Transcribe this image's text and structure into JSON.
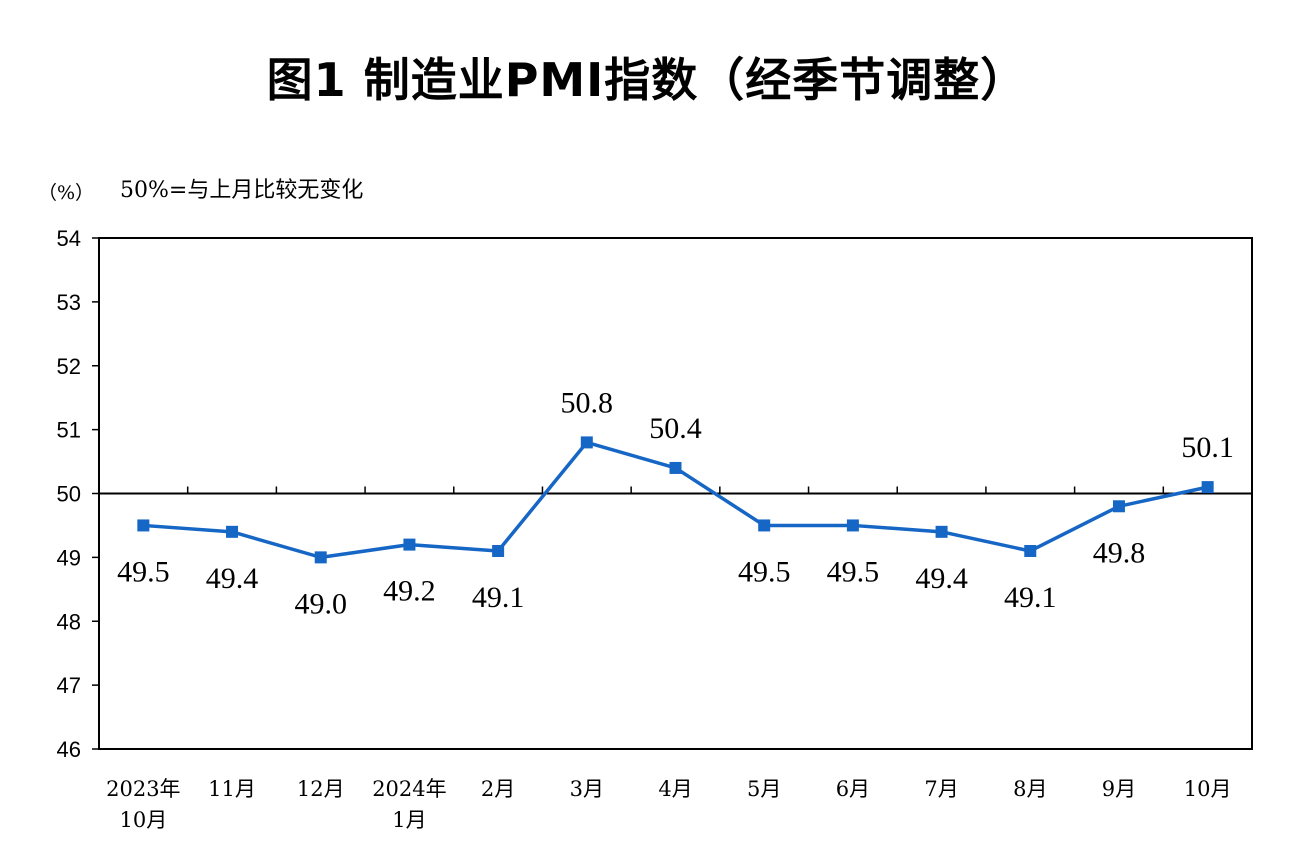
{
  "title": "图1  制造业PMI指数（经季节调整）",
  "unit_label": "（%）",
  "note": "50%=与上月比较无变化",
  "chart_data": {
    "type": "line",
    "title": "图1  制造业PMI指数（经季节调整）",
    "ylabel": "（%）",
    "annotation": "50%=与上月比较无变化",
    "ylim": [
      46,
      54
    ],
    "yticks": [
      46,
      47,
      48,
      49,
      50,
      51,
      52,
      53,
      54
    ],
    "reference_line": 50,
    "grid": false,
    "categories": [
      [
        "2023年",
        "10月"
      ],
      [
        "11月"
      ],
      [
        "12月"
      ],
      [
        "2024年",
        "1月"
      ],
      [
        "2月"
      ],
      [
        "3月"
      ],
      [
        "4月"
      ],
      [
        "5月"
      ],
      [
        "6月"
      ],
      [
        "7月"
      ],
      [
        "8月"
      ],
      [
        "9月"
      ],
      [
        "10月"
      ]
    ],
    "series": [
      {
        "values": [
          49.5,
          49.4,
          49.0,
          49.2,
          49.1,
          50.8,
          50.4,
          49.5,
          49.5,
          49.4,
          49.1,
          49.8,
          50.1
        ],
        "labels": [
          "49.5",
          "49.4",
          "49.0",
          "49.2",
          "49.1",
          "50.8",
          "50.4",
          "49.5",
          "49.5",
          "49.4",
          "49.1",
          "49.8",
          "50.1"
        ],
        "label_position": [
          "below",
          "below",
          "below",
          "below",
          "below",
          "above",
          "above",
          "below",
          "below",
          "below",
          "below",
          "below",
          "above"
        ],
        "color": "#1666c5"
      }
    ]
  }
}
